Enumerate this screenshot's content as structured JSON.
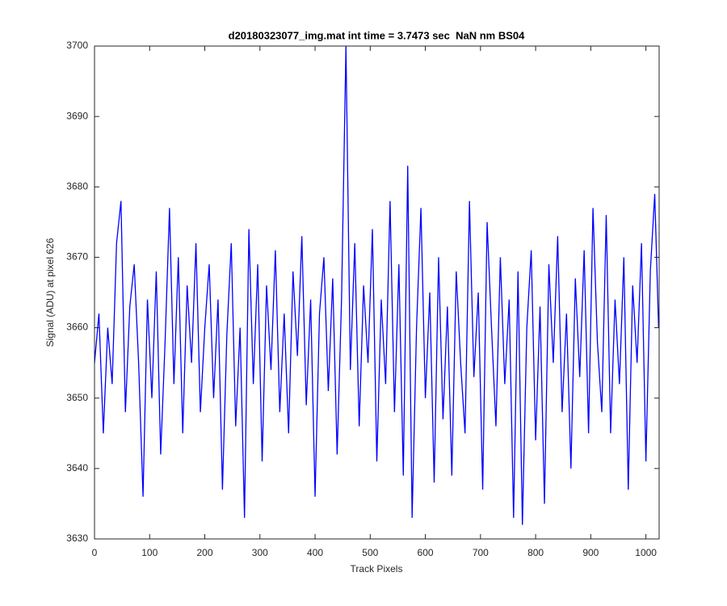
{
  "chart_data": {
    "type": "line",
    "title": "d20180323077_img.mat int time = 3.7473 sec  NaN nm BS04",
    "xlabel": "Track Pixels",
    "ylabel": "Signal (ADU) at pixel 626",
    "xlim": [
      0,
      1024
    ],
    "ylim": [
      3630,
      3700
    ],
    "xticks": [
      0,
      100,
      200,
      300,
      400,
      500,
      600,
      700,
      800,
      900,
      1000
    ],
    "yticks": [
      3630,
      3640,
      3650,
      3660,
      3670,
      3680,
      3690,
      3700
    ],
    "grid": false,
    "x": [
      0,
      8,
      16,
      24,
      32,
      40,
      48,
      56,
      64,
      72,
      80,
      88,
      96,
      104,
      112,
      120,
      128,
      136,
      144,
      152,
      160,
      168,
      176,
      184,
      192,
      200,
      208,
      216,
      224,
      232,
      240,
      248,
      256,
      264,
      272,
      280,
      288,
      296,
      304,
      312,
      320,
      328,
      336,
      344,
      352,
      360,
      368,
      376,
      384,
      392,
      400,
      408,
      416,
      424,
      432,
      440,
      448,
      456,
      464,
      472,
      480,
      488,
      496,
      504,
      512,
      520,
      528,
      536,
      544,
      552,
      560,
      568,
      576,
      584,
      592,
      600,
      608,
      616,
      624,
      632,
      640,
      648,
      656,
      664,
      672,
      680,
      688,
      696,
      704,
      712,
      720,
      728,
      736,
      744,
      752,
      760,
      768,
      776,
      784,
      792,
      800,
      808,
      816,
      824,
      832,
      840,
      848,
      856,
      864,
      872,
      880,
      888,
      896,
      904,
      912,
      920,
      928,
      936,
      944,
      952,
      960,
      968,
      976,
      984,
      992,
      1000,
      1008,
      1016,
      1023
    ],
    "series": [
      {
        "name": "signal",
        "color": "#0000ff",
        "values": [
          3655,
          3662,
          3645,
          3660,
          3652,
          3672,
          3678,
          3648,
          3663,
          3669,
          3655,
          3636,
          3664,
          3650,
          3668,
          3642,
          3658,
          3677,
          3652,
          3670,
          3645,
          3666,
          3655,
          3672,
          3648,
          3660,
          3669,
          3650,
          3664,
          3637,
          3659,
          3672,
          3646,
          3660,
          3633,
          3674,
          3652,
          3669,
          3641,
          3666,
          3654,
          3671,
          3648,
          3662,
          3645,
          3668,
          3656,
          3673,
          3649,
          3664,
          3636,
          3662,
          3670,
          3651,
          3667,
          3642,
          3664,
          3700,
          3654,
          3672,
          3646,
          3666,
          3655,
          3674,
          3641,
          3664,
          3652,
          3678,
          3648,
          3669,
          3639,
          3683,
          3633,
          3660,
          3677,
          3650,
          3665,
          3638,
          3670,
          3647,
          3663,
          3639,
          3668,
          3655,
          3645,
          3678,
          3653,
          3665,
          3637,
          3675,
          3660,
          3646,
          3670,
          3652,
          3664,
          3633,
          3668,
          3632,
          3660,
          3671,
          3644,
          3663,
          3635,
          3669,
          3655,
          3673,
          3648,
          3662,
          3640,
          3667,
          3653,
          3671,
          3645,
          3677,
          3658,
          3648,
          3676,
          3645,
          3664,
          3652,
          3670,
          3637,
          3666,
          3655,
          3672,
          3641,
          3668,
          3679,
          3660
        ]
      }
    ]
  }
}
